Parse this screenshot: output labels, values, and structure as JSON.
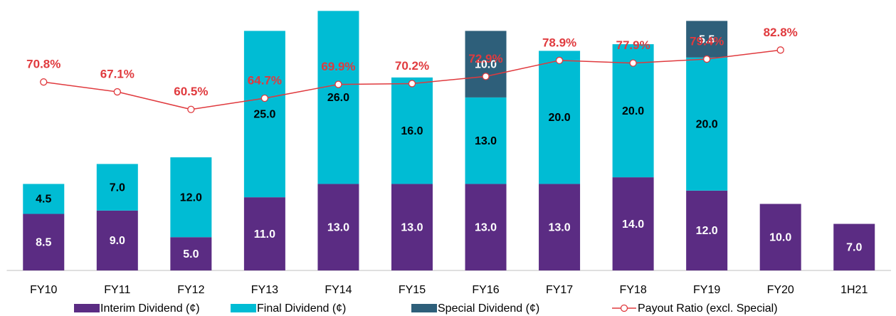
{
  "chart_data": {
    "type": "bar",
    "categories": [
      "FY10",
      "FY11",
      "FY12",
      "FY13",
      "FY14",
      "FY15",
      "FY16",
      "FY17",
      "FY18",
      "FY19",
      "FY20",
      "1H21"
    ],
    "stacked": true,
    "ylim": [
      0,
      40
    ],
    "y2lim": [
      0,
      100
    ],
    "series": [
      {
        "name": "Interim Dividend (¢)",
        "color": "#5b2c83",
        "label_color": "#ffffff",
        "values": [
          8.5,
          9,
          5,
          11,
          13,
          13,
          13,
          13,
          14,
          12,
          10,
          7
        ],
        "value_labels": [
          "8.5",
          "9.0",
          "5.0",
          "11.0",
          "13.0",
          "13.0",
          "13.0",
          "13.0",
          "14.0",
          "12.0",
          "10.0",
          "7.0"
        ]
      },
      {
        "name": "Final Dividend (¢)",
        "color": "#00bcd4",
        "label_color": "#000000",
        "values": [
          4.5,
          7,
          12,
          25,
          26,
          16,
          13,
          20,
          20,
          20,
          null,
          null
        ],
        "value_labels": [
          "4.5",
          "7.0",
          "12.0",
          "25.0",
          "26.0",
          "16.0",
          "13.0",
          "20.0",
          "20.0",
          "20.0",
          null,
          null
        ]
      },
      {
        "name": "Special Dividend (¢)",
        "color": "#2e5f7a",
        "label_color": "#ffffff",
        "values": [
          null,
          null,
          null,
          null,
          null,
          null,
          10,
          null,
          null,
          5.5,
          null,
          null
        ],
        "value_labels": [
          null,
          null,
          null,
          null,
          null,
          null,
          "10.0",
          null,
          null,
          "5.5",
          null,
          null
        ]
      },
      {
        "name": "Payout Ratio (excl. Special)",
        "type": "line",
        "axis": "y2",
        "color": "#e03a3e",
        "values": [
          70.8,
          67.1,
          60.5,
          64.7,
          69.9,
          70.2,
          72.9,
          78.9,
          77.9,
          79.4,
          82.8,
          null
        ],
        "value_labels": [
          "70.8%",
          "67.1%",
          "60.5%",
          "64.7%",
          "69.9%",
          "70.2%",
          "72.9%",
          "78.9%",
          "77.9%",
          "79.4%",
          "82.8%",
          null
        ]
      }
    ]
  }
}
